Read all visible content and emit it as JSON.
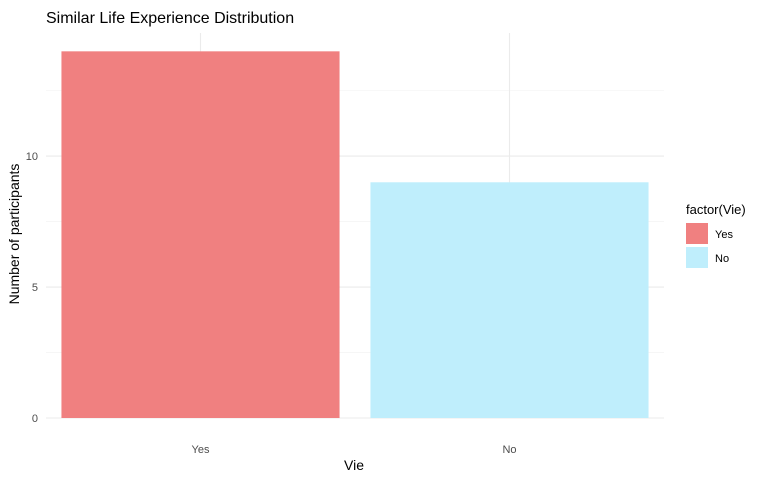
{
  "chart_data": {
    "type": "bar",
    "title": "Similar Life Experience Distribution",
    "xlabel": "Vie",
    "ylabel": "Number of participants",
    "categories": [
      "Yes",
      "No"
    ],
    "values": [
      14,
      9
    ],
    "colors": [
      "#f08080",
      "#bfeefc"
    ],
    "ylim": [
      0,
      14.7
    ],
    "yticks": [
      0,
      5,
      10
    ],
    "yminor": [
      2.5,
      7.5,
      12.5
    ],
    "grid": true,
    "legend": {
      "title": "factor(Vie)",
      "position": "right",
      "entries": [
        "Yes",
        "No"
      ]
    }
  }
}
